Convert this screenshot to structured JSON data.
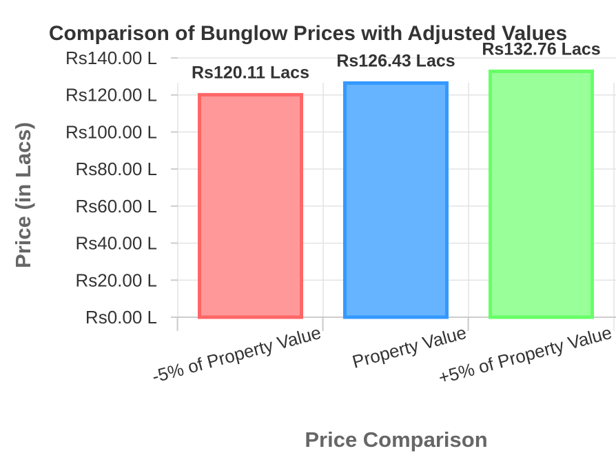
{
  "chart_data": {
    "type": "bar",
    "title": "Comparison of Bunglow Prices with Adjusted Values",
    "xlabel": "Price Comparison",
    "ylabel": "Price (in Lacs)",
    "categories": [
      "-5% of Property Value",
      "Property Value",
      "+5% of Property Value"
    ],
    "values": [
      120.11,
      126.43,
      132.76
    ],
    "data_labels": [
      "Rs120.11 Lacs",
      "Rs126.43 Lacs",
      "Rs132.76 Lacs"
    ],
    "ylim": [
      0,
      140
    ],
    "yticks": [
      0,
      20,
      40,
      60,
      80,
      100,
      120,
      140
    ],
    "ytick_labels": [
      "Rs0.00 L",
      "Rs20.00 L",
      "Rs40.00 L",
      "Rs60.00 L",
      "Rs80.00 L",
      "Rs100.00 L",
      "Rs120.00 L",
      "Rs140.00 L"
    ],
    "grid": true,
    "legend": "none",
    "colors": {
      "fills": [
        "#ff9999",
        "#66b3ff",
        "#99ff99"
      ],
      "edges": [
        "#ff6666",
        "#3399ff",
        "#66ff66"
      ]
    }
  }
}
